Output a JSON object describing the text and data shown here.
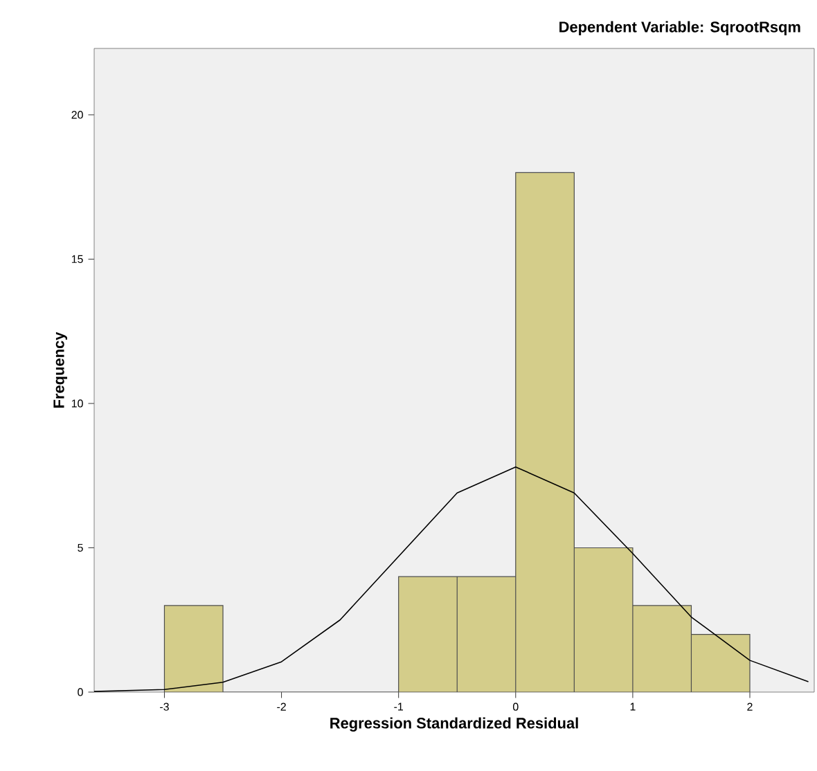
{
  "chart_data": {
    "type": "histogram",
    "title": "Dependent Variable: SqrootRsqm",
    "xlabel": "Regression Standardized Residual",
    "ylabel": "Frequency",
    "bins": [
      -3,
      -2.5,
      -2,
      -1.5,
      -1,
      -0.5,
      0,
      0.5,
      1,
      1.5,
      2
    ],
    "values": [
      3,
      0,
      0,
      0,
      4,
      4,
      18,
      5,
      3,
      2
    ],
    "color": "#d4cd8a",
    "series": [
      {
        "type": "line",
        "color": "#000000",
        "x": [
          -3.6,
          -3,
          -2.5,
          -2,
          -1.5,
          -1,
          -0.5,
          0,
          0.5,
          1,
          1.5,
          2,
          2.5
        ],
        "values": [
          0.02,
          0.09,
          0.34,
          1.05,
          2.5,
          4.7,
          6.9,
          7.8,
          6.9,
          4.8,
          2.6,
          1.1,
          0.36
        ]
      }
    ],
    "xlim": [
      -3.6,
      2.55
    ],
    "ylim": [
      0,
      22.3
    ],
    "xticks": [
      -3,
      -2,
      -1,
      0,
      1,
      2
    ],
    "yticks": [
      0,
      5,
      10,
      15,
      20
    ],
    "grid": false
  }
}
